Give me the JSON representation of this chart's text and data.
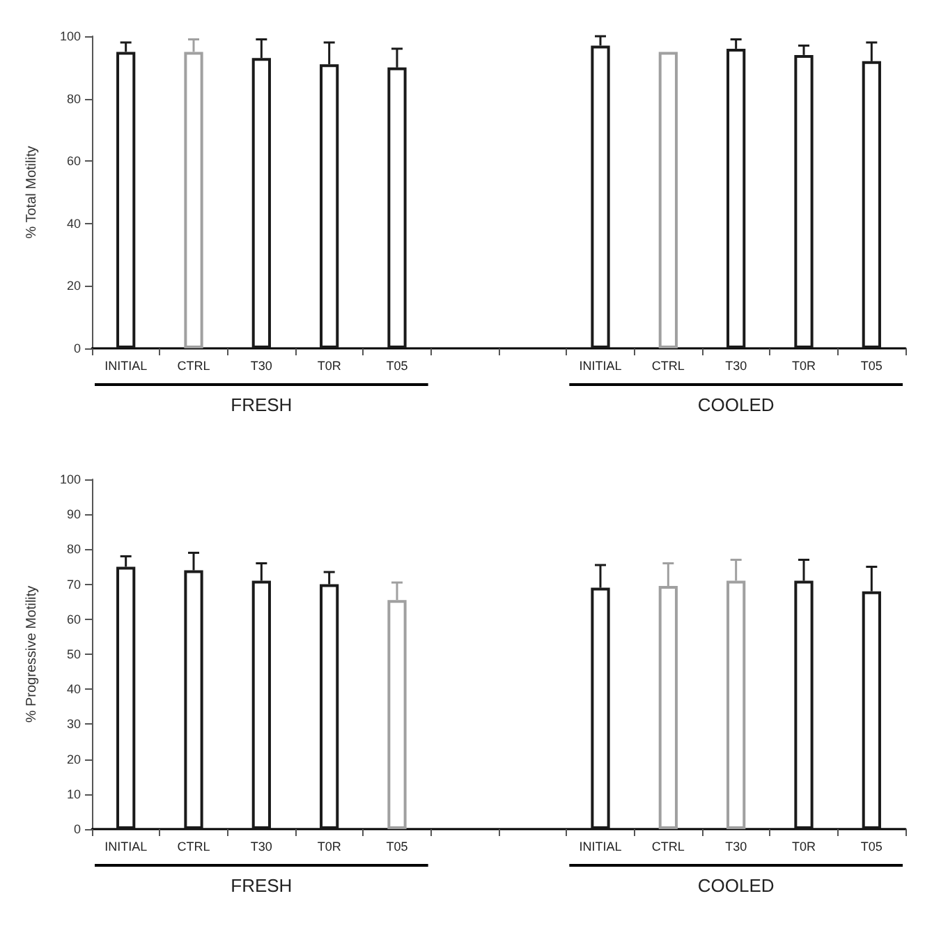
{
  "chart_data": [
    {
      "type": "bar",
      "ylabel": "% Total Motility",
      "categories": [
        "INITIAL",
        "CTRL",
        "T30",
        "T0R",
        "T05",
        null,
        null,
        "INITIAL",
        "CTRL",
        "T30",
        "T0R",
        "T05"
      ],
      "values": [
        95,
        95,
        93,
        91,
        90,
        null,
        null,
        97,
        95,
        96,
        94,
        92
      ],
      "colors": [
        "#1a1a1a",
        "#a0a0a0",
        "#1a1a1a",
        "#1a1a1a",
        "#1a1a1a",
        "#1a1a1a",
        "#1a1a1a",
        "#1a1a1a",
        "#a0a0a0",
        "#1a1a1a",
        "#1a1a1a",
        "#1a1a1a"
      ],
      "errors": [
        [
          95,
          98
        ],
        [
          95,
          99
        ],
        [
          93,
          99
        ],
        [
          91,
          98
        ],
        [
          90,
          96
        ],
        null,
        null,
        [
          97,
          100
        ],
        null,
        [
          96,
          99
        ],
        [
          94,
          97
        ],
        [
          92,
          98
        ]
      ],
      "ylim": [
        0,
        100
      ],
      "yticks": [
        0,
        20,
        40,
        60,
        80,
        100
      ],
      "grid": false,
      "annotations": [
        "FRESH",
        "COOLED"
      ]
    },
    {
      "type": "bar",
      "ylabel": "% Progressive Motility",
      "categories": [
        "INITIAL",
        "CTRL",
        "T30",
        "T0R",
        "T05",
        null,
        null,
        "INITIAL",
        "CTRL",
        "T30",
        "T0R",
        "T05"
      ],
      "values": [
        75,
        74,
        71,
        70,
        65.5,
        null,
        null,
        69,
        69.5,
        71,
        71,
        68
      ],
      "colors": [
        "#1a1a1a",
        "#1a1a1a",
        "#1a1a1a",
        "#1a1a1a",
        "#a0a0a0",
        "#1a1a1a",
        "#1a1a1a",
        "#1a1a1a",
        "#a0a0a0",
        "#a0a0a0",
        "#1a1a1a",
        "#1a1a1a"
      ],
      "errors": [
        [
          75,
          78
        ],
        [
          74,
          79
        ],
        [
          71,
          76
        ],
        [
          70,
          73.5
        ],
        [
          65.5,
          70.5
        ],
        null,
        null,
        [
          69,
          75.5
        ],
        [
          69.5,
          76
        ],
        [
          71,
          77
        ],
        [
          71,
          77
        ],
        [
          68,
          75
        ]
      ],
      "ylim": [
        0,
        100
      ],
      "yticks": [
        0,
        10,
        20,
        30,
        40,
        50,
        60,
        70,
        80,
        90,
        100
      ],
      "grid": false,
      "annotations": [
        "FRESH",
        "COOLED"
      ]
    }
  ]
}
